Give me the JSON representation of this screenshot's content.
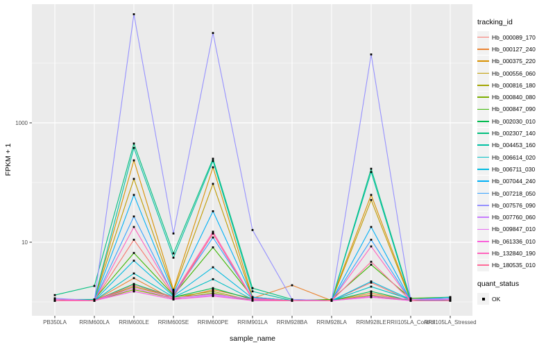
{
  "figure": {
    "background": "#FFFFFF",
    "panel_background": "#EBEBEB",
    "grid_color": "#FFFFFF",
    "tick_color": "#333333",
    "tick_label_color": "#4D4D4D",
    "point_color": "#000000"
  },
  "chart_data": {
    "type": "line",
    "title": "",
    "xlabel": "sample_name",
    "ylabel": "FPKM + 1",
    "y_scale": "log10",
    "y_ticks": [
      10,
      1000
    ],
    "y_minor_ticks": [
      1,
      100,
      10000
    ],
    "ylim": [
      0.9,
      80000
    ],
    "grid": "on",
    "legend_position": "right",
    "legend_title": "tracking_id",
    "x_categories": [
      "PB350LA",
      "RRIM600LA",
      "RRIM600LE",
      "RRIM600SE",
      "RRIM600PE",
      "RRIM901LA",
      "RRIM928BA",
      "RRIM928LA",
      "RRIM928LE",
      "RRII105LA_Control",
      "RRII105LA_Stressed"
    ],
    "series": [
      {
        "name": "Hb_000089_170",
        "color": "#F8766D",
        "values": [
          1.05,
          1.05,
          11,
          1.3,
          14,
          1.1,
          1.05,
          1.05,
          2.1,
          1.05,
          1.05
        ]
      },
      {
        "name": "Hb_000127_240",
        "color": "#EA8331",
        "values": [
          1.05,
          1.05,
          2.5,
          1.1,
          1.6,
          1.15,
          1.9,
          1.05,
          1.4,
          1.05,
          1.05
        ]
      },
      {
        "name": "Hb_000375_220",
        "color": "#D89000",
        "values": [
          1.05,
          1.1,
          235,
          1.6,
          180,
          1.2,
          1.05,
          1.1,
          62,
          1.1,
          1.1
        ]
      },
      {
        "name": "Hb_000556_060",
        "color": "#C09B00",
        "values": [
          1.05,
          1.1,
          115,
          1.5,
          95,
          1.15,
          1.05,
          1.05,
          51,
          1.05,
          1.1
        ]
      },
      {
        "name": "Hb_000816_180",
        "color": "#A3A500",
        "values": [
          1.05,
          1.05,
          1.8,
          1.2,
          1.5,
          1.05,
          1.05,
          1.05,
          1.3,
          1.05,
          1.05
        ]
      },
      {
        "name": "Hb_000840_080",
        "color": "#7CAE00",
        "values": [
          1.05,
          1.05,
          1.6,
          1.15,
          1.4,
          1.05,
          1.05,
          1.05,
          1.25,
          1.05,
          1.1
        ]
      },
      {
        "name": "Hb_000847_090",
        "color": "#39B600",
        "values": [
          1.05,
          1.1,
          6.6,
          1.3,
          8.2,
          1.2,
          1.05,
          1.1,
          4.2,
          1.15,
          1.2
        ]
      },
      {
        "name": "Hb_002030_010",
        "color": "#00BB4E",
        "values": [
          1.05,
          1.05,
          2.0,
          1.2,
          1.7,
          1.1,
          1.05,
          1.05,
          1.5,
          1.05,
          1.1
        ]
      },
      {
        "name": "Hb_002307_140",
        "color": "#00BF7D",
        "values": [
          1.3,
          1.85,
          450,
          6.5,
          250,
          1.7,
          1.1,
          1.05,
          170,
          1.1,
          1.15
        ]
      },
      {
        "name": "Hb_004453_160",
        "color": "#00C1A3",
        "values": [
          1.1,
          1.1,
          380,
          5.5,
          230,
          1.5,
          1.05,
          1.05,
          150,
          1.05,
          1.1
        ]
      },
      {
        "name": "Hb_006614_020",
        "color": "#00BFC4",
        "values": [
          1.05,
          1.05,
          3.0,
          1.2,
          2.4,
          1.1,
          1.05,
          1.05,
          1.8,
          1.1,
          1.2
        ]
      },
      {
        "name": "Hb_006711_030",
        "color": "#00BAE0",
        "values": [
          1.05,
          1.05,
          4.9,
          1.25,
          3.8,
          1.15,
          1.05,
          1.05,
          2.2,
          1.1,
          1.15
        ]
      },
      {
        "name": "Hb_007044_240",
        "color": "#00B0F6",
        "values": [
          1.05,
          1.05,
          62,
          1.4,
          33,
          1.2,
          1.05,
          1.05,
          18,
          1.05,
          1.1
        ]
      },
      {
        "name": "Hb_007218_050",
        "color": "#35A2FF",
        "values": [
          1.05,
          1.05,
          27,
          1.3,
          12,
          1.15,
          1.05,
          1.05,
          11,
          1.05,
          1.05
        ]
      },
      {
        "name": "Hb_007576_090",
        "color": "#9590FF",
        "values": [
          1.15,
          1.05,
          66000,
          14,
          32000,
          16,
          1.1,
          1.05,
          14000,
          1.1,
          1.15
        ]
      },
      {
        "name": "Hb_007760_060",
        "color": "#C77CFF",
        "values": [
          1.05,
          1.05,
          1.5,
          1.1,
          1.3,
          1.05,
          1.05,
          1.05,
          1.2,
          1.05,
          1.05
        ]
      },
      {
        "name": "Hb_009847_010",
        "color": "#E76BF3",
        "values": [
          1.05,
          1.05,
          1.7,
          1.15,
          1.35,
          1.1,
          1.05,
          1.05,
          1.25,
          1.1,
          1.1
        ]
      },
      {
        "name": "Hb_061336_010",
        "color": "#FA62DB",
        "values": [
          1.1,
          1.05,
          1.5,
          1.1,
          1.25,
          1.05,
          1.05,
          1.05,
          1.2,
          1.05,
          1.05
        ]
      },
      {
        "name": "Hb_132840_190",
        "color": "#FF62BC",
        "values": [
          1.05,
          1.05,
          18,
          1.35,
          15,
          1.15,
          1.05,
          1.05,
          8.5,
          1.05,
          1.05
        ]
      },
      {
        "name": "Hb_180535_010",
        "color": "#FF6A98",
        "values": [
          1.05,
          1.05,
          1.9,
          1.2,
          14,
          1.1,
          1.05,
          1.05,
          4.7,
          1.05,
          1.05
        ]
      }
    ],
    "quant_status": {
      "title": "quant_status",
      "entries": [
        {
          "label": "OK",
          "marker": "black-square"
        }
      ]
    }
  }
}
